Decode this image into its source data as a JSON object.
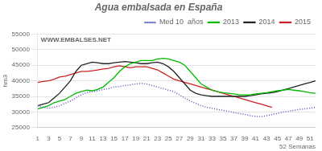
{
  "chart_data": {
    "type": "line",
    "title": "Agua embalsada en España",
    "ylabel": "hm3",
    "xlabel": "52 Semanas",
    "annotations": [
      "WWW.EMBALSES.NET"
    ],
    "x": [
      1,
      2,
      3,
      4,
      5,
      6,
      7,
      8,
      9,
      10,
      11,
      12,
      13,
      14,
      15,
      16,
      17,
      18,
      19,
      20,
      21,
      22,
      23,
      24,
      25,
      26,
      27,
      28,
      29,
      30,
      31,
      32,
      33,
      34,
      35,
      36,
      37,
      38,
      39,
      40,
      41,
      42,
      43,
      44,
      45,
      46,
      47,
      48,
      49,
      50,
      51,
      52
    ],
    "series": [
      {
        "name": "Med 10  años",
        "color": "#5555bb",
        "line_style": "dotted",
        "values": [
          32000,
          31500,
          31200,
          31500,
          32000,
          32800,
          33500,
          34500,
          35500,
          36200,
          36500,
          36800,
          37200,
          37500,
          38000,
          38200,
          38500,
          38700,
          39000,
          39200,
          39000,
          38500,
          38000,
          37500,
          37000,
          36500,
          35500,
          34500,
          33500,
          32800,
          32000,
          31500,
          31200,
          30800,
          30500,
          30200,
          29800,
          29500,
          29200,
          28800,
          28600,
          28500,
          28800,
          29200,
          29500,
          30000,
          30200,
          30500,
          30800,
          31000,
          31200,
          31500
        ]
      },
      {
        "name": "2013",
        "color": "#00bb00",
        "line_style": "solid",
        "values": [
          31000,
          31500,
          32000,
          33000,
          33500,
          34000,
          35000,
          36000,
          36500,
          37000,
          36800,
          37200,
          38000,
          39500,
          41000,
          43000,
          44500,
          45500,
          46000,
          46500,
          46500,
          46500,
          47000,
          47200,
          47000,
          46500,
          46000,
          45000,
          43000,
          41000,
          39000,
          38000,
          37000,
          36500,
          36200,
          36000,
          35800,
          35500,
          35500,
          35500,
          35800,
          36000,
          36200,
          36500,
          36800,
          37000,
          37200,
          37000,
          36800,
          36500,
          36200,
          36000
        ]
      },
      {
        "name": "2014",
        "color": "#222222",
        "line_style": "solid",
        "values": [
          32000,
          32500,
          33000,
          34500,
          36000,
          38000,
          40000,
          43000,
          45000,
          45500,
          46000,
          45800,
          45500,
          45500,
          45800,
          46000,
          46200,
          46000,
          45800,
          45500,
          45500,
          45800,
          46000,
          45500,
          44500,
          43000,
          41000,
          39000,
          37000,
          36000,
          35500,
          35200,
          35000,
          35000,
          35000,
          35000,
          35000,
          35000,
          35000,
          35200,
          35500,
          35800,
          36000,
          36200,
          36500,
          37000,
          37500,
          38000,
          38500,
          39000,
          39500,
          40000
        ]
      },
      {
        "name": "2015",
        "color": "#cc2222",
        "line_style": "solid",
        "values": [
          39500,
          39800,
          40000,
          40500,
          41200,
          41500,
          42000,
          42500,
          43000,
          43000,
          43200,
          43500,
          43800,
          44000,
          44500,
          44800,
          44500,
          44200,
          44500,
          44500,
          44500,
          44000,
          43500,
          42500,
          41500,
          40500,
          40000,
          39500,
          39000,
          38500,
          38000,
          37500,
          37000,
          36500,
          36000,
          35500,
          35000,
          34500,
          34000,
          33500,
          33000,
          32500,
          32000,
          31500,
          null,
          null,
          null,
          null,
          null,
          null,
          null,
          null
        ]
      }
    ],
    "xlim": [
      1,
      52
    ],
    "xticks": [
      1,
      3,
      5,
      7,
      9,
      11,
      13,
      15,
      17,
      19,
      21,
      23,
      25,
      27,
      29,
      31,
      33,
      35,
      37,
      39,
      41,
      43,
      45,
      47,
      49,
      51
    ],
    "ylim": [
      25000,
      55000
    ],
    "yticks": [
      25000,
      30000,
      35000,
      40000,
      45000,
      50000,
      55000
    ],
    "grid": "y",
    "legend": "upper right"
  }
}
